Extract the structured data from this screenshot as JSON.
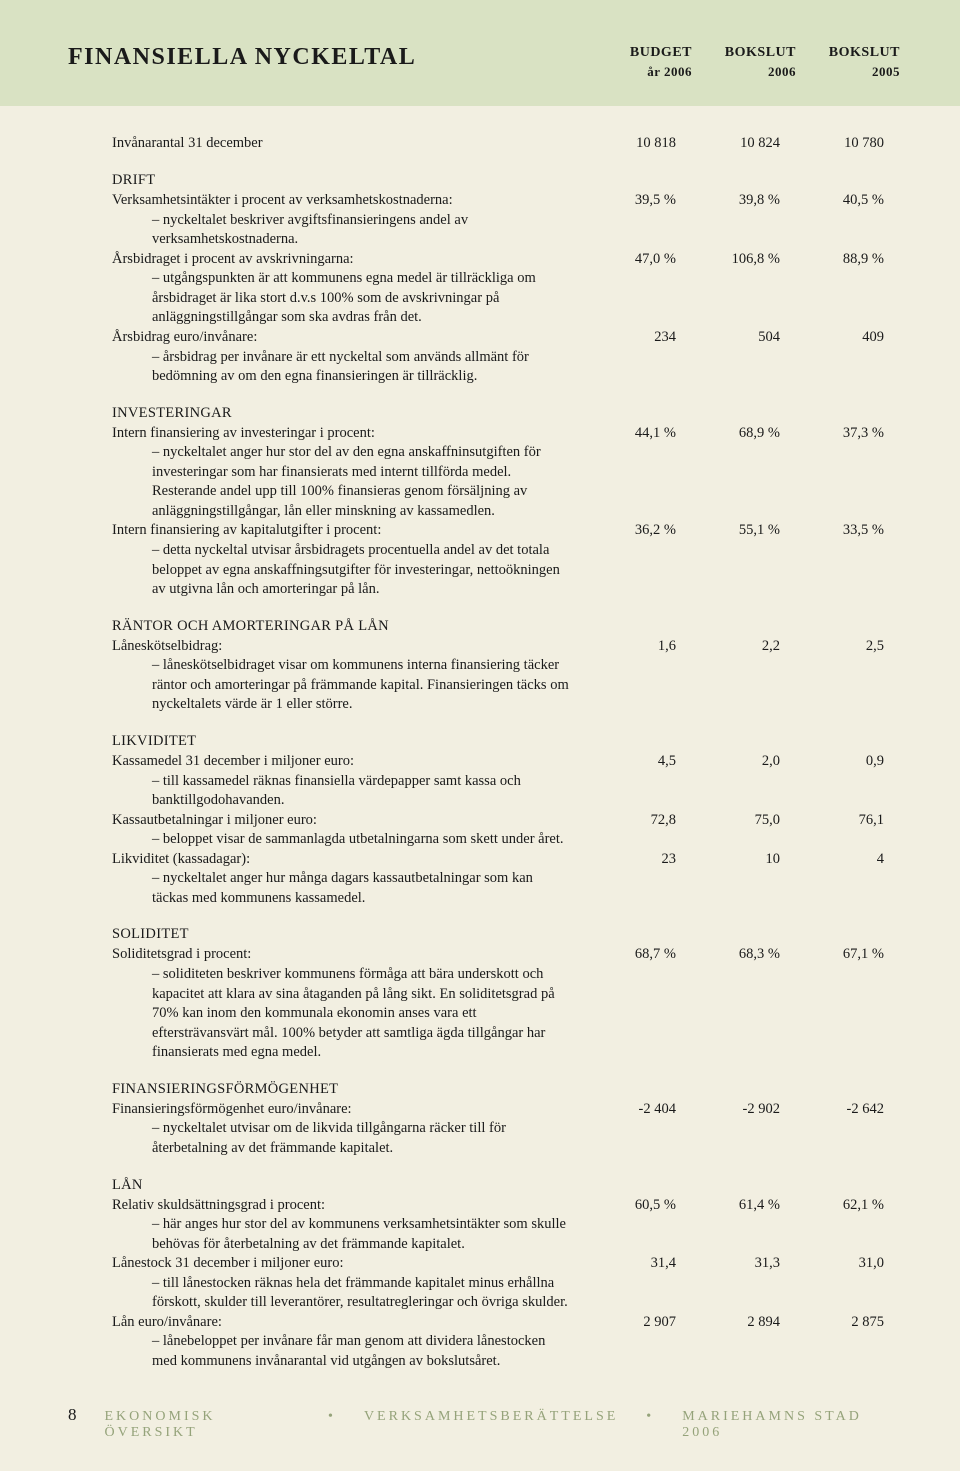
{
  "header": {
    "title": "FINANSIELLA NYCKELTAL",
    "cols": [
      {
        "line1": "BUDGET",
        "line2": "år 2006"
      },
      {
        "line1": "BOKSLUT",
        "line2": "2006"
      },
      {
        "line1": "BOKSLUT",
        "line2": "2005"
      }
    ]
  },
  "colors": {
    "page_bg": "#f2efe1",
    "band_bg": "#d9e2c3",
    "text": "#1a1a1a",
    "footer_accent": "#95a37a"
  },
  "rows": [
    {
      "label": "Invånarantal 31 december",
      "vals": [
        "10 818",
        "10 824",
        "10 780"
      ],
      "top_space": 0
    },
    {
      "section": "DRIFT"
    },
    {
      "label": "Verksamhetsintäkter i procent av verksamhetskostnaderna:",
      "desc": "– nyckeltalet beskriver avgiftsfinansieringens andel av verksamhetskostnaderna.",
      "vals": [
        "39,5 %",
        "39,8 %",
        "40,5 %"
      ]
    },
    {
      "label": "Årsbidraget i procent av avskrivningarna:",
      "desc": "– utgångspunkten är att kommunens egna medel är tillräckliga om årsbidraget är lika stort d.v.s 100% som de avskrivningar på anläggningstillgångar som ska avdras från det.",
      "vals": [
        "47,0 %",
        "106,8 %",
        "88,9 %"
      ]
    },
    {
      "label": "Årsbidrag euro/invånare:",
      "desc": "– årsbidrag per invånare är ett nyckeltal som används allmänt för bedömning av om den egna finansieringen är tillräcklig.",
      "vals": [
        "234",
        "504",
        "409"
      ]
    },
    {
      "section": "INVESTERINGAR"
    },
    {
      "label": "Intern finansiering av investeringar i procent:",
      "desc": "– nyckeltalet anger hur stor del av den egna anskaffninsutgiften för investeringar som har finansierats med internt tillförda medel. Resterande andel upp till 100% finansieras genom försäljning av anläggningstillgångar, lån eller minskning av kassamedlen.",
      "vals": [
        "44,1 %",
        "68,9 %",
        "37,3 %"
      ]
    },
    {
      "label": "Intern finansiering av kapitalutgifter i procent:",
      "desc": "– detta nyckeltal utvisar årsbidragets procentuella andel av det totala beloppet av egna anskaffningsutgifter för investeringar, nettoökningen av utgivna lån och amorteringar på lån.",
      "vals": [
        "36,2 %",
        "55,1 %",
        "33,5 %"
      ]
    },
    {
      "section": "RÄNTOR OCH AMORTERINGAR PÅ LÅN"
    },
    {
      "label": "Låneskötselbidrag:",
      "desc": "– låneskötselbidraget visar om kommunens interna finansiering täcker räntor och amorteringar på främmande kapital. Finansieringen täcks om nyckeltalets värde är 1 eller större.",
      "vals": [
        "1,6",
        "2,2",
        "2,5"
      ]
    },
    {
      "section": "LIKVIDITET"
    },
    {
      "label": "Kassamedel 31 december i miljoner euro:",
      "desc": "– till kassamedel räknas finansiella värdepapper samt kassa och banktillgodohavanden.",
      "vals": [
        "4,5",
        "2,0",
        "0,9"
      ]
    },
    {
      "label": "Kassautbetalningar i miljoner euro:",
      "desc": "– beloppet visar de sammanlagda utbetalningarna som skett under året.",
      "vals": [
        "72,8",
        "75,0",
        "76,1"
      ]
    },
    {
      "label": "Likviditet (kassadagar):",
      "desc": "– nyckeltalet anger hur många dagars kassautbetalningar som kan täckas med kommunens kassamedel.",
      "vals": [
        "23",
        "10",
        "4"
      ]
    },
    {
      "section": "SOLIDITET"
    },
    {
      "label": "Soliditetsgrad i procent:",
      "desc": "– soliditeten beskriver kommunens förmåga att bära underskott och kapacitet att klara av sina åtaganden på lång sikt. En soliditetsgrad på 70% kan inom den kommunala ekonomin anses vara ett eftersträvansvärt mål. 100% betyder att samtliga ägda tillgångar har finansierats med egna medel.",
      "vals": [
        "68,7 %",
        "68,3 %",
        "67,1 %"
      ]
    },
    {
      "section": "FINANSIERINGSFÖRMÖGENHET"
    },
    {
      "label": "Finansieringsförmögenhet euro/invånare:",
      "desc": "– nyckeltalet utvisar om de likvida tillgångarna räcker till för återbetalning av det främmande kapitalet.",
      "vals": [
        "-2 404",
        "-2 902",
        "-2 642"
      ]
    },
    {
      "section": "LÅN"
    },
    {
      "label": "Relativ skuldsättningsgrad i procent:",
      "desc": "– här anges hur stor del av kommunens verksamhetsintäkter som skulle behövas för återbetalning av det främmande kapitalet.",
      "vals": [
        "60,5 %",
        "61,4 %",
        "62,1 %"
      ]
    },
    {
      "label": "Lånestock 31 december i miljoner euro:",
      "desc": "– till lånestocken räknas hela det främmande kapitalet minus erhållna förskott, skulder till leverantörer, resultatregleringar och övriga skulder.",
      "vals": [
        "31,4",
        "31,3",
        "31,0"
      ]
    },
    {
      "label": "Lån euro/invånare:",
      "desc": "– lånebeloppet per invånare får man genom att dividera lånestocken med kommunens invånarantal vid utgången av bokslutsåret.",
      "vals": [
        "2 907",
        "2 894",
        "2 875"
      ]
    }
  ],
  "footer": {
    "page_number": "8",
    "parts": [
      "EKONOMISK ÖVERSIKT",
      "VERKSAMHETSBERÄTTELSE",
      "MARIEHAMNS STAD 2006"
    ]
  }
}
